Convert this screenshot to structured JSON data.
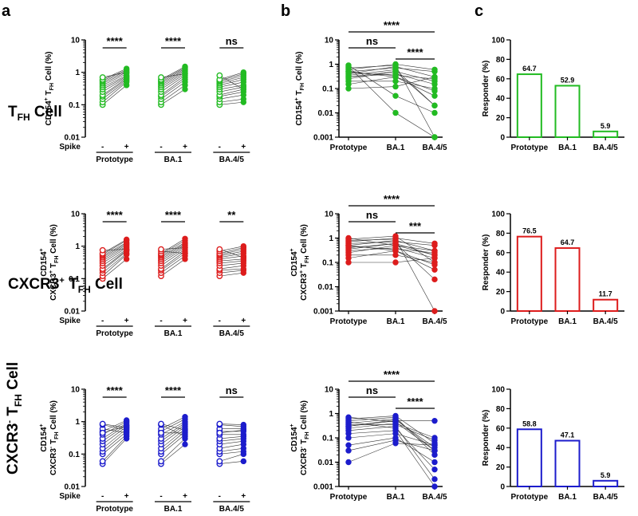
{
  "panel_labels": [
    "a",
    "b",
    "c"
  ],
  "rows": [
    {
      "title_html": "T<tspan font-size='12' dy='5'>FH</tspan><tspan dy='-5'> Cell</tspan>",
      "title_text": "TFH Cell",
      "color": "#22bb22"
    },
    {
      "title_html": "CXCR3<tspan font-size='11' dy='-7'>+</tspan><tspan dy='7'> T</tspan><tspan font-size='12' dy='5'>FH</tspan><tspan dy='-5'> Cell</tspan>",
      "title_text": "CXCR3+ TFH Cell",
      "color": "#dd1c1c"
    },
    {
      "title_html": "CXCR3<tspan font-size='11' dy='-7'>-</tspan><tspan dy='7'> T</tspan><tspan font-size='12' dy='5'>FH</tspan><tspan dy='-5'> Cell</tspan>",
      "title_text": "CXCR3- TFH Cell",
      "color": "#1c1ccc"
    }
  ],
  "chart_data": [
    {
      "panel": "a",
      "row": 0,
      "type": "scatter",
      "title": "TFH Cell",
      "ylabel": "CD154+ TFH Cell (%)",
      "ylabel_lines_html": [
        "CD154<tspan font-size='7' dy='-4'>+</tspan><tspan dy='4'> T</tspan><tspan font-size='7' dy='3'>FH</tspan><tspan dy='-3'> Cell (%)</tspan>"
      ],
      "yscale": "log",
      "ylim": [
        0.01,
        10
      ],
      "yticks": [
        "10",
        "1",
        "0.1",
        "0.01"
      ],
      "x_label": "Spike",
      "x_signs": [
        "-",
        "+"
      ],
      "groups": [
        "Prototype",
        "BA.1",
        "BA.4/5"
      ],
      "significance": [
        "****",
        "****",
        "ns"
      ],
      "pairs": {
        "Prototype": {
          "minus": [
            0.1,
            0.12,
            0.15,
            0.18,
            0.2,
            0.25,
            0.3,
            0.35,
            0.4,
            0.45,
            0.5,
            0.55,
            0.6,
            0.7
          ],
          "plus": [
            0.4,
            0.5,
            0.55,
            0.6,
            0.65,
            0.7,
            0.75,
            0.8,
            0.9,
            1.0,
            1.1,
            1.2,
            1.3,
            1.0
          ]
        },
        "BA.1": {
          "minus": [
            0.1,
            0.12,
            0.15,
            0.18,
            0.2,
            0.25,
            0.3,
            0.35,
            0.4,
            0.45,
            0.5,
            0.55,
            0.6,
            0.7
          ],
          "plus": [
            0.3,
            0.4,
            0.5,
            0.6,
            0.7,
            0.8,
            0.9,
            1.0,
            1.1,
            1.2,
            1.3,
            1.4,
            1.5,
            0.9
          ]
        },
        "BA.4/5": {
          "minus": [
            0.1,
            0.12,
            0.15,
            0.18,
            0.2,
            0.25,
            0.3,
            0.35,
            0.4,
            0.45,
            0.5,
            0.55,
            0.6,
            0.8
          ],
          "plus": [
            0.12,
            0.15,
            0.2,
            0.25,
            0.3,
            0.35,
            0.4,
            0.5,
            0.6,
            0.7,
            0.8,
            0.9,
            1.0,
            0.3
          ]
        }
      }
    },
    {
      "panel": "a",
      "row": 1,
      "type": "scatter",
      "title": "CXCR3+ TFH Cell",
      "ylabel": "CD154+ CXCR3+ TFH Cell (%)",
      "ylabel_lines_html": [
        "CD154<tspan font-size='7' dy='-4'>+</tspan>",
        "CXCR3<tspan font-size='7' dy='-4'>+</tspan><tspan dy='4'> T</tspan><tspan font-size='7' dy='3'>FH</tspan><tspan dy='-3'> Cell (%)</tspan>"
      ],
      "yscale": "log",
      "ylim": [
        0.01,
        10
      ],
      "yticks": [
        "10",
        "1",
        "0.1",
        "0.01"
      ],
      "x_label": "Spike",
      "x_signs": [
        "-",
        "+"
      ],
      "groups": [
        "Prototype",
        "BA.1",
        "BA.4/5"
      ],
      "significance": [
        "****",
        "****",
        "**"
      ],
      "pairs": {
        "Prototype": {
          "minus": [
            0.1,
            0.12,
            0.15,
            0.18,
            0.2,
            0.25,
            0.3,
            0.35,
            0.4,
            0.45,
            0.5,
            0.55,
            0.6,
            0.75
          ],
          "plus": [
            0.4,
            0.55,
            0.6,
            0.7,
            0.75,
            0.8,
            0.9,
            1.0,
            1.1,
            1.2,
            1.3,
            1.5,
            1.6,
            0.8
          ]
        },
        "BA.1": {
          "minus": [
            0.12,
            0.15,
            0.18,
            0.2,
            0.25,
            0.3,
            0.35,
            0.4,
            0.45,
            0.5,
            0.55,
            0.6,
            0.7,
            0.8
          ],
          "plus": [
            0.4,
            0.5,
            0.6,
            0.7,
            0.8,
            0.9,
            1.0,
            1.1,
            1.2,
            1.3,
            1.5,
            1.7,
            0.6,
            0.9
          ]
        },
        "BA.4/5": {
          "minus": [
            0.12,
            0.15,
            0.18,
            0.2,
            0.25,
            0.3,
            0.35,
            0.4,
            0.45,
            0.5,
            0.55,
            0.6,
            0.7,
            0.8
          ],
          "plus": [
            0.15,
            0.18,
            0.2,
            0.25,
            0.3,
            0.35,
            0.4,
            0.5,
            0.6,
            0.7,
            0.8,
            0.9,
            1.0,
            0.45
          ]
        }
      }
    },
    {
      "panel": "a",
      "row": 2,
      "type": "scatter",
      "title": "CXCR3- TFH Cell",
      "ylabel": "CD154+ CXCR3- TFH Cell (%)",
      "ylabel_lines_html": [
        "CD154<tspan font-size='7' dy='-4'>+</tspan>",
        "CXCR3<tspan font-size='7' dy='-4'>-</tspan><tspan dy='4'> T</tspan><tspan font-size='7' dy='3'>FH</tspan><tspan dy='-3'> Cell (%)</tspan>"
      ],
      "yscale": "log",
      "ylim": [
        0.01,
        10
      ],
      "yticks": [
        "10",
        "1",
        "0.1",
        "0.01"
      ],
      "x_label": "Spike",
      "x_signs": [
        "-",
        "+"
      ],
      "groups": [
        "Prototype",
        "BA.1",
        "BA.4/5"
      ],
      "significance": [
        "****",
        "****",
        "ns"
      ],
      "pairs": {
        "Prototype": {
          "minus": [
            0.05,
            0.06,
            0.1,
            0.12,
            0.15,
            0.2,
            0.25,
            0.3,
            0.4,
            0.5,
            0.6,
            0.8,
            0.85,
            0.45
          ],
          "plus": [
            0.3,
            0.35,
            0.4,
            0.5,
            0.6,
            0.7,
            0.8,
            0.9,
            1.0,
            1.1,
            0.45,
            0.55,
            0.65,
            0.75
          ]
        },
        "BA.1": {
          "minus": [
            0.05,
            0.06,
            0.1,
            0.12,
            0.15,
            0.2,
            0.25,
            0.3,
            0.4,
            0.5,
            0.6,
            0.8,
            0.85,
            0.45
          ],
          "plus": [
            0.2,
            0.3,
            0.4,
            0.5,
            0.6,
            0.7,
            0.8,
            0.9,
            1.0,
            1.2,
            1.4,
            0.35,
            0.55,
            0.45
          ]
        },
        "BA.4/5": {
          "minus": [
            0.05,
            0.06,
            0.1,
            0.12,
            0.15,
            0.2,
            0.25,
            0.3,
            0.4,
            0.5,
            0.6,
            0.8,
            0.85,
            0.45
          ],
          "plus": [
            0.06,
            0.1,
            0.12,
            0.15,
            0.2,
            0.25,
            0.3,
            0.35,
            0.4,
            0.5,
            0.6,
            0.7,
            0.8,
            0.55
          ]
        }
      }
    },
    {
      "panel": "b",
      "row": 0,
      "type": "scatter",
      "title": "TFH Cell",
      "ylabel": "CD154+ TFH Cell (%)",
      "ylabel_lines_html": [
        "CD154<tspan font-size='7' dy='-4'>+</tspan><tspan dy='4'> T</tspan><tspan font-size='7' dy='3'>FH</tspan><tspan dy='-3'> Cell (%)</tspan>"
      ],
      "yscale": "log",
      "ylim": [
        0.001,
        10
      ],
      "yticks": [
        "10",
        "1",
        "0.1",
        "0.01",
        "0.001"
      ],
      "categories": [
        "Prototype",
        "BA.1",
        "BA.4/5"
      ],
      "brackets": [
        {
          "from": 0,
          "to": 2,
          "label": "****"
        },
        {
          "from": 0,
          "to": 1,
          "label": "ns"
        },
        {
          "from": 1,
          "to": 2,
          "label": "****"
        }
      ],
      "series": [
        [
          0.1,
          0.12,
          0.3
        ],
        [
          0.15,
          0.3,
          0.05
        ],
        [
          0.2,
          0.2,
          0.1
        ],
        [
          0.25,
          0.5,
          0.2
        ],
        [
          0.3,
          0.4,
          0.15
        ],
        [
          0.35,
          0.6,
          0.02
        ],
        [
          0.4,
          0.8,
          0.3
        ],
        [
          0.5,
          0.7,
          0.5
        ],
        [
          0.6,
          1.0,
          0.6
        ],
        [
          0.7,
          0.9,
          0.001
        ],
        [
          0.8,
          0.01,
          0.001
        ],
        [
          0.9,
          0.05,
          0.01
        ],
        [
          0.5,
          0.3,
          0.08
        ],
        [
          0.3,
          0.5,
          0.02
        ],
        [
          0.45,
          0.35,
          0.25
        ]
      ]
    },
    {
      "panel": "b",
      "row": 1,
      "type": "scatter",
      "title": "CXCR3+ TFH Cell",
      "ylabel": "CD154+ CXCR3+ TFH Cell (%)",
      "ylabel_lines_html": [
        "CD154<tspan font-size='7' dy='-4'>+</tspan>",
        "CXCR3<tspan font-size='7' dy='-4'>+</tspan><tspan dy='4'> T</tspan><tspan font-size='7' dy='3'>FH</tspan><tspan dy='-3'> Cell (%)</tspan>"
      ],
      "yscale": "log",
      "ylim": [
        0.001,
        10
      ],
      "yticks": [
        "10",
        "1",
        "0.1",
        "0.01",
        "0.001"
      ],
      "categories": [
        "Prototype",
        "BA.1",
        "BA.4/5"
      ],
      "brackets": [
        {
          "from": 0,
          "to": 2,
          "label": "****"
        },
        {
          "from": 0,
          "to": 1,
          "label": "ns"
        },
        {
          "from": 1,
          "to": 2,
          "label": "***"
        }
      ],
      "series": [
        [
          0.1,
          0.1,
          0.15
        ],
        [
          0.15,
          0.3,
          0.05
        ],
        [
          0.2,
          0.2,
          0.1
        ],
        [
          0.25,
          0.5,
          0.2
        ],
        [
          0.3,
          0.4,
          0.15
        ],
        [
          0.4,
          0.6,
          0.02
        ],
        [
          0.5,
          0.8,
          0.3
        ],
        [
          0.6,
          0.7,
          0.5
        ],
        [
          0.7,
          1.0,
          0.6
        ],
        [
          0.8,
          0.9,
          0.001
        ],
        [
          0.9,
          1.2,
          0.1
        ],
        [
          1.0,
          0.5,
          0.3
        ],
        [
          0.5,
          0.3,
          0.08
        ],
        [
          0.35,
          0.6,
          0.2
        ],
        [
          0.45,
          0.35,
          0.25
        ]
      ]
    },
    {
      "panel": "b",
      "row": 2,
      "type": "scatter",
      "title": "CXCR3- TFH Cell",
      "ylabel": "CD154+ CXCR3- TFH Cell (%)",
      "ylabel_lines_html": [
        "CD154<tspan font-size='7' dy='-4'>+</tspan>",
        "CXCR3<tspan font-size='7' dy='-4'>-</tspan><tspan dy='4'> T</tspan><tspan font-size='7' dy='3'>FH</tspan><tspan dy='-3'> Cell (%)</tspan>"
      ],
      "yscale": "log",
      "ylim": [
        0.001,
        10
      ],
      "yticks": [
        "10",
        "1",
        "0.1",
        "0.01",
        "0.001"
      ],
      "categories": [
        "Prototype",
        "BA.1",
        "BA.4/5"
      ],
      "brackets": [
        {
          "from": 0,
          "to": 2,
          "label": "****"
        },
        {
          "from": 0,
          "to": 1,
          "label": "ns"
        },
        {
          "from": 1,
          "to": 2,
          "label": "****"
        }
      ],
      "series": [
        [
          0.01,
          0.06,
          0.05
        ],
        [
          0.03,
          0.08,
          0.03
        ],
        [
          0.05,
          0.1,
          0.01
        ],
        [
          0.1,
          0.15,
          0.05
        ],
        [
          0.15,
          0.2,
          0.001
        ],
        [
          0.2,
          0.3,
          0.002
        ],
        [
          0.25,
          0.4,
          0.1
        ],
        [
          0.3,
          0.5,
          0.5
        ],
        [
          0.4,
          0.6,
          0.03
        ],
        [
          0.5,
          0.7,
          0.02
        ],
        [
          0.6,
          0.8,
          0.06
        ],
        [
          0.7,
          0.45,
          0.03
        ],
        [
          0.35,
          0.35,
          0.08
        ],
        [
          0.45,
          0.25,
          0.005
        ],
        [
          0.3,
          0.55,
          0.04
        ]
      ]
    },
    {
      "panel": "c",
      "row": 0,
      "type": "bar",
      "title": "TFH Cell",
      "ylabel": "Responder (%)",
      "ylim": [
        0,
        100
      ],
      "yticks": [
        "100",
        "80",
        "60",
        "40",
        "20",
        "0"
      ],
      "categories": [
        "Prototype",
        "BA.1",
        "BA.4/5"
      ],
      "values": [
        64.7,
        52.9,
        5.9
      ],
      "value_labels": [
        "64.7",
        "52.9",
        "5.9"
      ]
    },
    {
      "panel": "c",
      "row": 1,
      "type": "bar",
      "title": "CXCR3+ TFH Cell",
      "ylabel": "Responder (%)",
      "ylim": [
        0,
        100
      ],
      "yticks": [
        "100",
        "80",
        "60",
        "40",
        "20",
        "0"
      ],
      "categories": [
        "Prototype",
        "BA.1",
        "BA.4/5"
      ],
      "values": [
        76.5,
        64.7,
        11.7
      ],
      "value_labels": [
        "76.5",
        "64.7",
        "11.7"
      ]
    },
    {
      "panel": "c",
      "row": 2,
      "type": "bar",
      "title": "CXCR3- TFH Cell",
      "ylabel": "Responder (%)",
      "ylim": [
        0,
        100
      ],
      "yticks": [
        "100",
        "80",
        "60",
        "40",
        "20",
        "0"
      ],
      "categories": [
        "Prototype",
        "BA.1",
        "BA.4/5"
      ],
      "values": [
        58.8,
        47.1,
        5.9
      ],
      "value_labels": [
        "58.8",
        "47.1",
        "5.9"
      ]
    }
  ]
}
